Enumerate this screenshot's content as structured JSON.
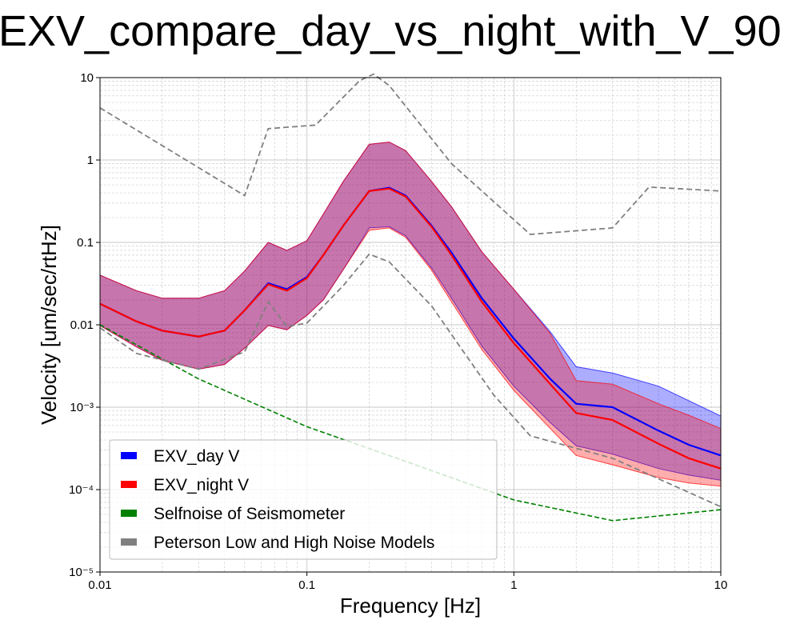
{
  "title": "EXV_compare_day_vs_night_with_V_90",
  "chart_data": {
    "type": "area",
    "title": "EXV_compare_day_vs_night_with_V_90",
    "xlabel": "Frequency [Hz]",
    "ylabel": "Velocity [um/sec/rtHz]",
    "xscale": "log",
    "yscale": "log",
    "xlim": [
      0.01,
      10
    ],
    "ylim": [
      1e-05,
      10
    ],
    "grid": true,
    "legend_position": "lower-left",
    "x_ticks": [
      {
        "value": 0.01,
        "label": "0.01"
      },
      {
        "value": 0.1,
        "label": "0.1"
      },
      {
        "value": 1,
        "label": "1"
      },
      {
        "value": 10,
        "label": "10"
      }
    ],
    "y_ticks": [
      {
        "value": 1e-05,
        "label": "10⁻⁵"
      },
      {
        "value": 0.0001,
        "label": "10⁻⁴"
      },
      {
        "value": 0.001,
        "label": "10⁻³"
      },
      {
        "value": 0.01,
        "label": "0.01"
      },
      {
        "value": 0.1,
        "label": "0.1"
      },
      {
        "value": 1,
        "label": "1"
      },
      {
        "value": 10,
        "label": "10"
      }
    ],
    "x": [
      0.01,
      0.015,
      0.02,
      0.03,
      0.04,
      0.05,
      0.065,
      0.08,
      0.1,
      0.12,
      0.15,
      0.2,
      0.25,
      0.3,
      0.4,
      0.5,
      0.7,
      1.0,
      1.5,
      2.0,
      3.0,
      5.0,
      7.0,
      10.0
    ],
    "series": [
      {
        "name": "EXV_day V",
        "color": "#0000ff",
        "median": [
          0.018,
          0.011,
          0.0085,
          0.0072,
          0.0085,
          0.015,
          0.032,
          0.027,
          0.038,
          0.07,
          0.16,
          0.42,
          0.46,
          0.37,
          0.16,
          0.075,
          0.021,
          0.0068,
          0.0022,
          0.0011,
          0.001,
          0.00052,
          0.00035,
          0.00026
        ],
        "upper": [
          0.04,
          0.026,
          0.021,
          0.021,
          0.026,
          0.045,
          0.1,
          0.08,
          0.105,
          0.22,
          0.55,
          1.55,
          1.65,
          1.3,
          0.55,
          0.27,
          0.077,
          0.027,
          0.0082,
          0.0031,
          0.0026,
          0.0018,
          0.0012,
          0.00078
        ],
        "lower": [
          0.0098,
          0.0054,
          0.0037,
          0.0029,
          0.0033,
          0.0052,
          0.0098,
          0.0087,
          0.013,
          0.02,
          0.047,
          0.15,
          0.155,
          0.12,
          0.049,
          0.021,
          0.0055,
          0.0018,
          0.00065,
          0.00034,
          0.00027,
          0.00018,
          0.00015,
          0.00013
        ]
      },
      {
        "name": "EXV_night V",
        "color": "#ff0000",
        "median": [
          0.018,
          0.011,
          0.0085,
          0.0072,
          0.0085,
          0.015,
          0.031,
          0.026,
          0.037,
          0.07,
          0.16,
          0.42,
          0.45,
          0.36,
          0.155,
          0.07,
          0.019,
          0.006,
          0.0019,
          0.00085,
          0.0007,
          0.00036,
          0.00024,
          0.00018
        ],
        "upper": [
          0.04,
          0.026,
          0.021,
          0.021,
          0.026,
          0.045,
          0.1,
          0.08,
          0.105,
          0.22,
          0.55,
          1.55,
          1.65,
          1.3,
          0.55,
          0.27,
          0.077,
          0.027,
          0.0078,
          0.0021,
          0.0019,
          0.0011,
          0.0008,
          0.00055
        ],
        "lower": [
          0.0098,
          0.0054,
          0.0037,
          0.0029,
          0.0033,
          0.0052,
          0.0098,
          0.0087,
          0.013,
          0.02,
          0.047,
          0.14,
          0.15,
          0.115,
          0.046,
          0.019,
          0.005,
          0.0016,
          0.00055,
          0.00026,
          0.0002,
          0.00014,
          0.00012,
          0.00011
        ]
      }
    ],
    "reference_lines": [
      {
        "name": "Selfnoise of Seismometer",
        "color": "#008000",
        "style": "dashed",
        "x": [
          0.01,
          0.03,
          0.1,
          0.3,
          1.0,
          3.0,
          10.0
        ],
        "y": [
          0.01,
          0.0022,
          0.00058,
          0.00022,
          7.5e-05,
          4.2e-05,
          5.7e-05
        ]
      },
      {
        "name": "Peterson Low and High Noise Models",
        "color": "#808080",
        "style": "dashed",
        "curves": [
          {
            "x": [
              0.01,
              0.05,
              0.065,
              0.11,
              0.18,
              0.21,
              0.25,
              0.5,
              1.2,
              3.0,
              4.5,
              10.0
            ],
            "y": [
              4.3,
              0.37,
              2.4,
              2.65,
              9.2,
              11.0,
              8.0,
              0.9,
              0.125,
              0.15,
              0.47,
              0.42
            ]
          },
          {
            "x": [
              0.01,
              0.015,
              0.03,
              0.05,
              0.065,
              0.08,
              0.1,
              0.15,
              0.2,
              0.25,
              0.4,
              0.8,
              1.2,
              3.0,
              10.0
            ],
            "y": [
              0.0092,
              0.0045,
              0.0029,
              0.0047,
              0.019,
              0.0095,
              0.0105,
              0.03,
              0.072,
              0.058,
              0.017,
              0.0014,
              0.00045,
              0.00024,
              6.2e-05
            ]
          }
        ]
      }
    ],
    "legend": [
      {
        "label": "EXV_day V",
        "color": "#0000ff"
      },
      {
        "label": "EXV_night V",
        "color": "#ff0000"
      },
      {
        "label": "Selfnoise of Seismometer",
        "color": "#008000"
      },
      {
        "label": "Peterson Low and High Noise Models",
        "color": "#808080"
      }
    ]
  }
}
